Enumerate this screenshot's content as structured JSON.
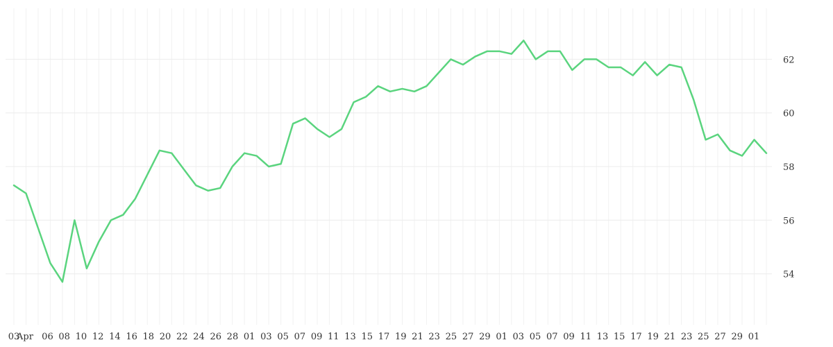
{
  "chart_data": {
    "type": "line",
    "title": "",
    "xlabel": "",
    "ylabel": "",
    "grid": true,
    "legend": "none",
    "line_color": "#5ad47e",
    "y_ticks": [
      54,
      56,
      58,
      60,
      62
    ],
    "ylim": [
      52.1,
      63.9
    ],
    "x_tick_labels": [
      "03",
      "Apr",
      "06",
      "08",
      "10",
      "12",
      "14",
      "16",
      "18",
      "20",
      "22",
      "24",
      "26",
      "28",
      "01",
      "03",
      "05",
      "07",
      "09",
      "11",
      "13",
      "15",
      "17",
      "19",
      "21",
      "23",
      "25",
      "27",
      "29",
      "01",
      "03",
      "05",
      "07",
      "09",
      "11",
      "13",
      "15",
      "17",
      "19",
      "21",
      "23",
      "25",
      "27",
      "29",
      "01"
    ],
    "series": [
      {
        "points": [
          [
            "Apr 03",
            57.3
          ],
          [
            "Apr 04",
            57.0
          ],
          [
            "Apr 05",
            55.7
          ],
          [
            "Apr 08",
            54.4
          ],
          [
            "Apr 09",
            53.7
          ],
          [
            "Apr 10",
            56.0
          ],
          [
            "Apr 11",
            54.2
          ],
          [
            "Apr 12",
            55.2
          ],
          [
            "Apr 15",
            56.0
          ],
          [
            "Apr 16",
            56.2
          ],
          [
            "Apr 17",
            56.8
          ],
          [
            "Apr 18",
            57.7
          ],
          [
            "Apr 23",
            58.6
          ],
          [
            "Apr 24",
            58.5
          ],
          [
            "Apr 25",
            57.9
          ],
          [
            "Apr 26",
            57.3
          ],
          [
            "Apr 29",
            57.1
          ],
          [
            "Apr 30",
            57.2
          ],
          [
            "May 01",
            58.0
          ],
          [
            "May 03",
            58.5
          ],
          [
            "May 06",
            58.4
          ],
          [
            "May 07",
            58.0
          ],
          [
            "May 08",
            58.1
          ],
          [
            "May 09",
            59.6
          ],
          [
            "May 10",
            59.8
          ],
          [
            "May 13",
            59.4
          ],
          [
            "May 14",
            59.1
          ],
          [
            "May 15",
            59.4
          ],
          [
            "May 16",
            60.4
          ],
          [
            "May 17",
            60.6
          ],
          [
            "May 20",
            61.0
          ],
          [
            "May 21",
            60.8
          ],
          [
            "May 22",
            60.9
          ],
          [
            "May 23",
            60.8
          ],
          [
            "May 24",
            61.0
          ],
          [
            "May 27",
            61.5
          ],
          [
            "May 28",
            62.0
          ],
          [
            "May 29",
            61.8
          ],
          [
            "May 30",
            62.1
          ],
          [
            "May 31",
            62.3
          ],
          [
            "Jun 03",
            62.3
          ],
          [
            "Jun 04",
            62.2
          ],
          [
            "Jun 05",
            62.7
          ],
          [
            "Jun 06",
            62.0
          ],
          [
            "Jun 07",
            62.3
          ],
          [
            "Jun 10",
            62.3
          ],
          [
            "Jun 11",
            61.6
          ],
          [
            "Jun 12",
            62.0
          ],
          [
            "Jun 13",
            62.0
          ],
          [
            "Jun 14",
            61.7
          ],
          [
            "Jun 17",
            61.7
          ],
          [
            "Jun 18",
            61.4
          ],
          [
            "Jun 19",
            61.9
          ],
          [
            "Jun 20",
            61.4
          ],
          [
            "Jun 21",
            61.8
          ],
          [
            "Jun 24",
            61.7
          ],
          [
            "Jun 25",
            60.5
          ],
          [
            "Jun 26",
            59.0
          ],
          [
            "Jun 27",
            59.2
          ],
          [
            "Jun 28",
            58.6
          ],
          [
            "Jul 01",
            58.4
          ],
          [
            "Jul 02",
            59.0
          ],
          [
            "Jul 03",
            58.5
          ]
        ]
      }
    ]
  }
}
